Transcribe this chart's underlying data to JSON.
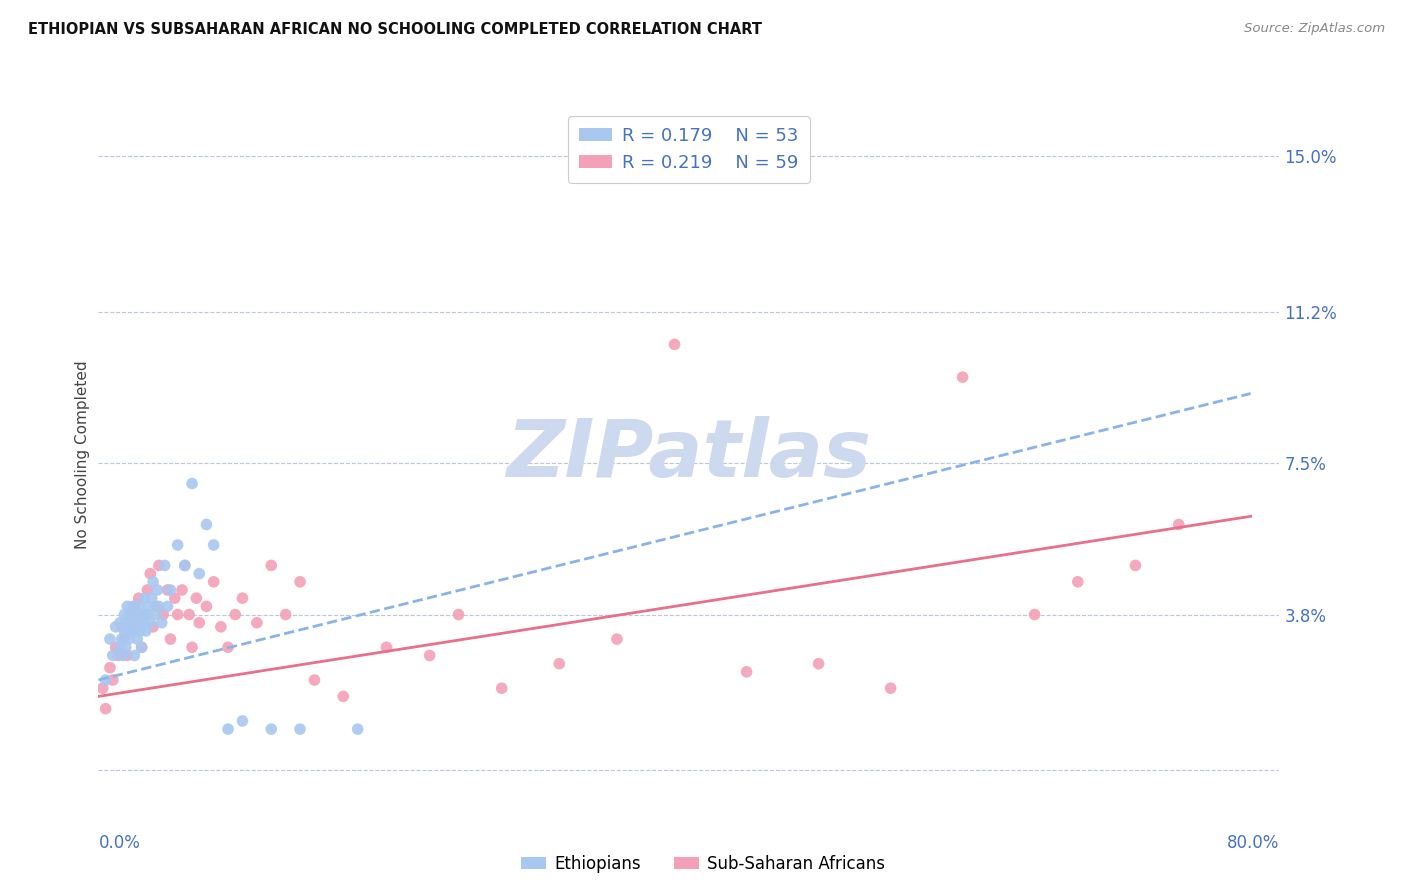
{
  "title": "ETHIOPIAN VS SUBSAHARAN AFRICAN NO SCHOOLING COMPLETED CORRELATION CHART",
  "source": "Source: ZipAtlas.com",
  "ylabel": "No Schooling Completed",
  "y_ticks": [
    0.0,
    0.038,
    0.075,
    0.112,
    0.15
  ],
  "y_tick_labels": [
    "",
    "3.8%",
    "7.5%",
    "11.2%",
    "15.0%"
  ],
  "xlim": [
    0.0,
    0.82
  ],
  "ylim": [
    -0.008,
    0.162
  ],
  "legend_label1": "Ethiopians",
  "legend_label2": "Sub-Saharan Africans",
  "r1": 0.179,
  "n1": 53,
  "r2": 0.219,
  "n2": 59,
  "color_ethiopian": "#a8c8f0",
  "color_subsaharan": "#f4a0b8",
  "color_text": "#4472c4",
  "color_trendline1": "#88b4e8",
  "color_trendline2": "#e8708a",
  "background_color": "#ffffff",
  "watermark_text": "ZIPatlas",
  "watermark_color": "#ccd9ee",
  "trendline1_x0": 0.0,
  "trendline1_y0": 0.022,
  "trendline1_x1": 0.8,
  "trendline1_y1": 0.092,
  "trendline2_x0": 0.0,
  "trendline2_y0": 0.018,
  "trendline2_x1": 0.8,
  "trendline2_y1": 0.062,
  "ethiopian_x": [
    0.005,
    0.008,
    0.01,
    0.012,
    0.015,
    0.015,
    0.016,
    0.017,
    0.018,
    0.018,
    0.019,
    0.02,
    0.02,
    0.021,
    0.022,
    0.022,
    0.023,
    0.024,
    0.025,
    0.025,
    0.026,
    0.027,
    0.028,
    0.028,
    0.029,
    0.03,
    0.03,
    0.031,
    0.032,
    0.033,
    0.034,
    0.035,
    0.036,
    0.037,
    0.038,
    0.04,
    0.041,
    0.042,
    0.044,
    0.046,
    0.048,
    0.05,
    0.055,
    0.06,
    0.065,
    0.07,
    0.075,
    0.08,
    0.09,
    0.1,
    0.12,
    0.14,
    0.18
  ],
  "ethiopian_y": [
    0.022,
    0.032,
    0.028,
    0.035,
    0.03,
    0.036,
    0.032,
    0.028,
    0.034,
    0.038,
    0.03,
    0.036,
    0.04,
    0.032,
    0.034,
    0.038,
    0.036,
    0.04,
    0.028,
    0.034,
    0.038,
    0.032,
    0.036,
    0.04,
    0.034,
    0.03,
    0.038,
    0.036,
    0.042,
    0.034,
    0.038,
    0.04,
    0.036,
    0.042,
    0.046,
    0.038,
    0.044,
    0.04,
    0.036,
    0.05,
    0.04,
    0.044,
    0.055,
    0.05,
    0.07,
    0.048,
    0.06,
    0.055,
    0.01,
    0.012,
    0.01,
    0.01,
    0.01
  ],
  "subsaharan_x": [
    0.003,
    0.005,
    0.008,
    0.01,
    0.012,
    0.014,
    0.016,
    0.018,
    0.02,
    0.022,
    0.024,
    0.025,
    0.026,
    0.028,
    0.03,
    0.032,
    0.034,
    0.036,
    0.038,
    0.04,
    0.042,
    0.045,
    0.048,
    0.05,
    0.053,
    0.055,
    0.058,
    0.06,
    0.063,
    0.065,
    0.068,
    0.07,
    0.075,
    0.08,
    0.085,
    0.09,
    0.095,
    0.1,
    0.11,
    0.12,
    0.13,
    0.14,
    0.15,
    0.17,
    0.2,
    0.23,
    0.25,
    0.28,
    0.32,
    0.36,
    0.4,
    0.45,
    0.5,
    0.55,
    0.6,
    0.65,
    0.68,
    0.72,
    0.75
  ],
  "subsaharan_y": [
    0.02,
    0.015,
    0.025,
    0.022,
    0.03,
    0.028,
    0.035,
    0.032,
    0.028,
    0.034,
    0.038,
    0.04,
    0.036,
    0.042,
    0.03,
    0.038,
    0.044,
    0.048,
    0.035,
    0.04,
    0.05,
    0.038,
    0.044,
    0.032,
    0.042,
    0.038,
    0.044,
    0.05,
    0.038,
    0.03,
    0.042,
    0.036,
    0.04,
    0.046,
    0.035,
    0.03,
    0.038,
    0.042,
    0.036,
    0.05,
    0.038,
    0.046,
    0.022,
    0.018,
    0.03,
    0.028,
    0.038,
    0.02,
    0.026,
    0.032,
    0.104,
    0.024,
    0.026,
    0.02,
    0.096,
    0.038,
    0.046,
    0.05,
    0.06
  ]
}
